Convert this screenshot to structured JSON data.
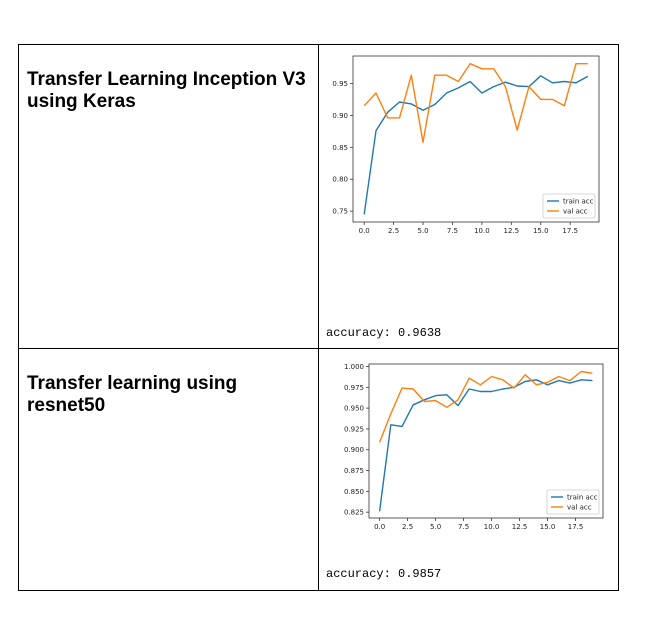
{
  "rows": [
    {
      "title": "Transfer Learning Inception V3 using Keras",
      "accuracy_text": "accuracy: 0.9638"
    },
    {
      "title": "Transfer learning using resnet50",
      "accuracy_text": "accuracy: 0.9857"
    }
  ],
  "chart_data": [
    {
      "type": "line",
      "x": [
        0,
        1,
        2,
        3,
        4,
        5,
        6,
        7,
        8,
        9,
        10,
        11,
        12,
        13,
        14,
        15,
        16,
        17,
        18,
        19
      ],
      "series": [
        {
          "name": "train acc",
          "color": "#1f77b4",
          "values": [
            0.745,
            0.876,
            0.905,
            0.921,
            0.918,
            0.908,
            0.917,
            0.935,
            0.943,
            0.953,
            0.935,
            0.945,
            0.952,
            0.946,
            0.945,
            0.962,
            0.951,
            0.953,
            0.951,
            0.961
          ]
        },
        {
          "name": "val acc",
          "color": "#ff7f0e",
          "values": [
            0.915,
            0.935,
            0.896,
            0.896,
            0.963,
            0.858,
            0.963,
            0.963,
            0.953,
            0.981,
            0.973,
            0.973,
            0.945,
            0.877,
            0.945,
            0.925,
            0.925,
            0.915,
            0.981,
            0.981
          ]
        }
      ],
      "xticks": [
        "0.0",
        "2.5",
        "5.0",
        "7.5",
        "10.0",
        "12.5",
        "15.0",
        "17.5"
      ],
      "xtick_values": [
        0,
        2.5,
        5,
        7.5,
        10,
        12.5,
        15,
        17.5
      ],
      "yticks": [
        "0.75",
        "0.80",
        "0.85",
        "0.90",
        "0.95"
      ],
      "ytick_values": [
        0.75,
        0.8,
        0.85,
        0.9,
        0.95
      ],
      "xlim": [
        -0.95,
        19.95
      ],
      "ylim": [
        0.733,
        0.993
      ],
      "grid": false,
      "legend": "lower-right"
    },
    {
      "type": "line",
      "x": [
        0,
        1,
        2,
        3,
        4,
        5,
        6,
        7,
        8,
        9,
        10,
        11,
        12,
        13,
        14,
        15,
        16,
        17,
        18,
        19
      ],
      "series": [
        {
          "name": "train acc",
          "color": "#1f77b4",
          "values": [
            0.826,
            0.93,
            0.928,
            0.954,
            0.96,
            0.965,
            0.966,
            0.953,
            0.973,
            0.97,
            0.97,
            0.973,
            0.975,
            0.982,
            0.984,
            0.978,
            0.983,
            0.98,
            0.984,
            0.983
          ]
        },
        {
          "name": "val acc",
          "color": "#ff7f0e",
          "values": [
            0.909,
            0.943,
            0.974,
            0.973,
            0.958,
            0.959,
            0.951,
            0.96,
            0.986,
            0.978,
            0.988,
            0.984,
            0.974,
            0.99,
            0.978,
            0.981,
            0.988,
            0.983,
            0.994,
            0.992
          ]
        }
      ],
      "xticks": [
        "0.0",
        "2.5",
        "5.0",
        "7.5",
        "10.0",
        "12.5",
        "15.0",
        "17.5"
      ],
      "xtick_values": [
        0,
        2.5,
        5,
        7.5,
        10,
        12.5,
        15,
        17.5
      ],
      "yticks": [
        "0.825",
        "0.850",
        "0.875",
        "0.900",
        "0.925",
        "0.950",
        "0.975",
        "1.000"
      ],
      "ytick_values": [
        0.825,
        0.85,
        0.875,
        0.9,
        0.925,
        0.95,
        0.975,
        1.0
      ],
      "xlim": [
        -0.95,
        19.95
      ],
      "ylim": [
        0.818,
        1.003
      ],
      "grid": false,
      "legend": "lower-right"
    }
  ]
}
